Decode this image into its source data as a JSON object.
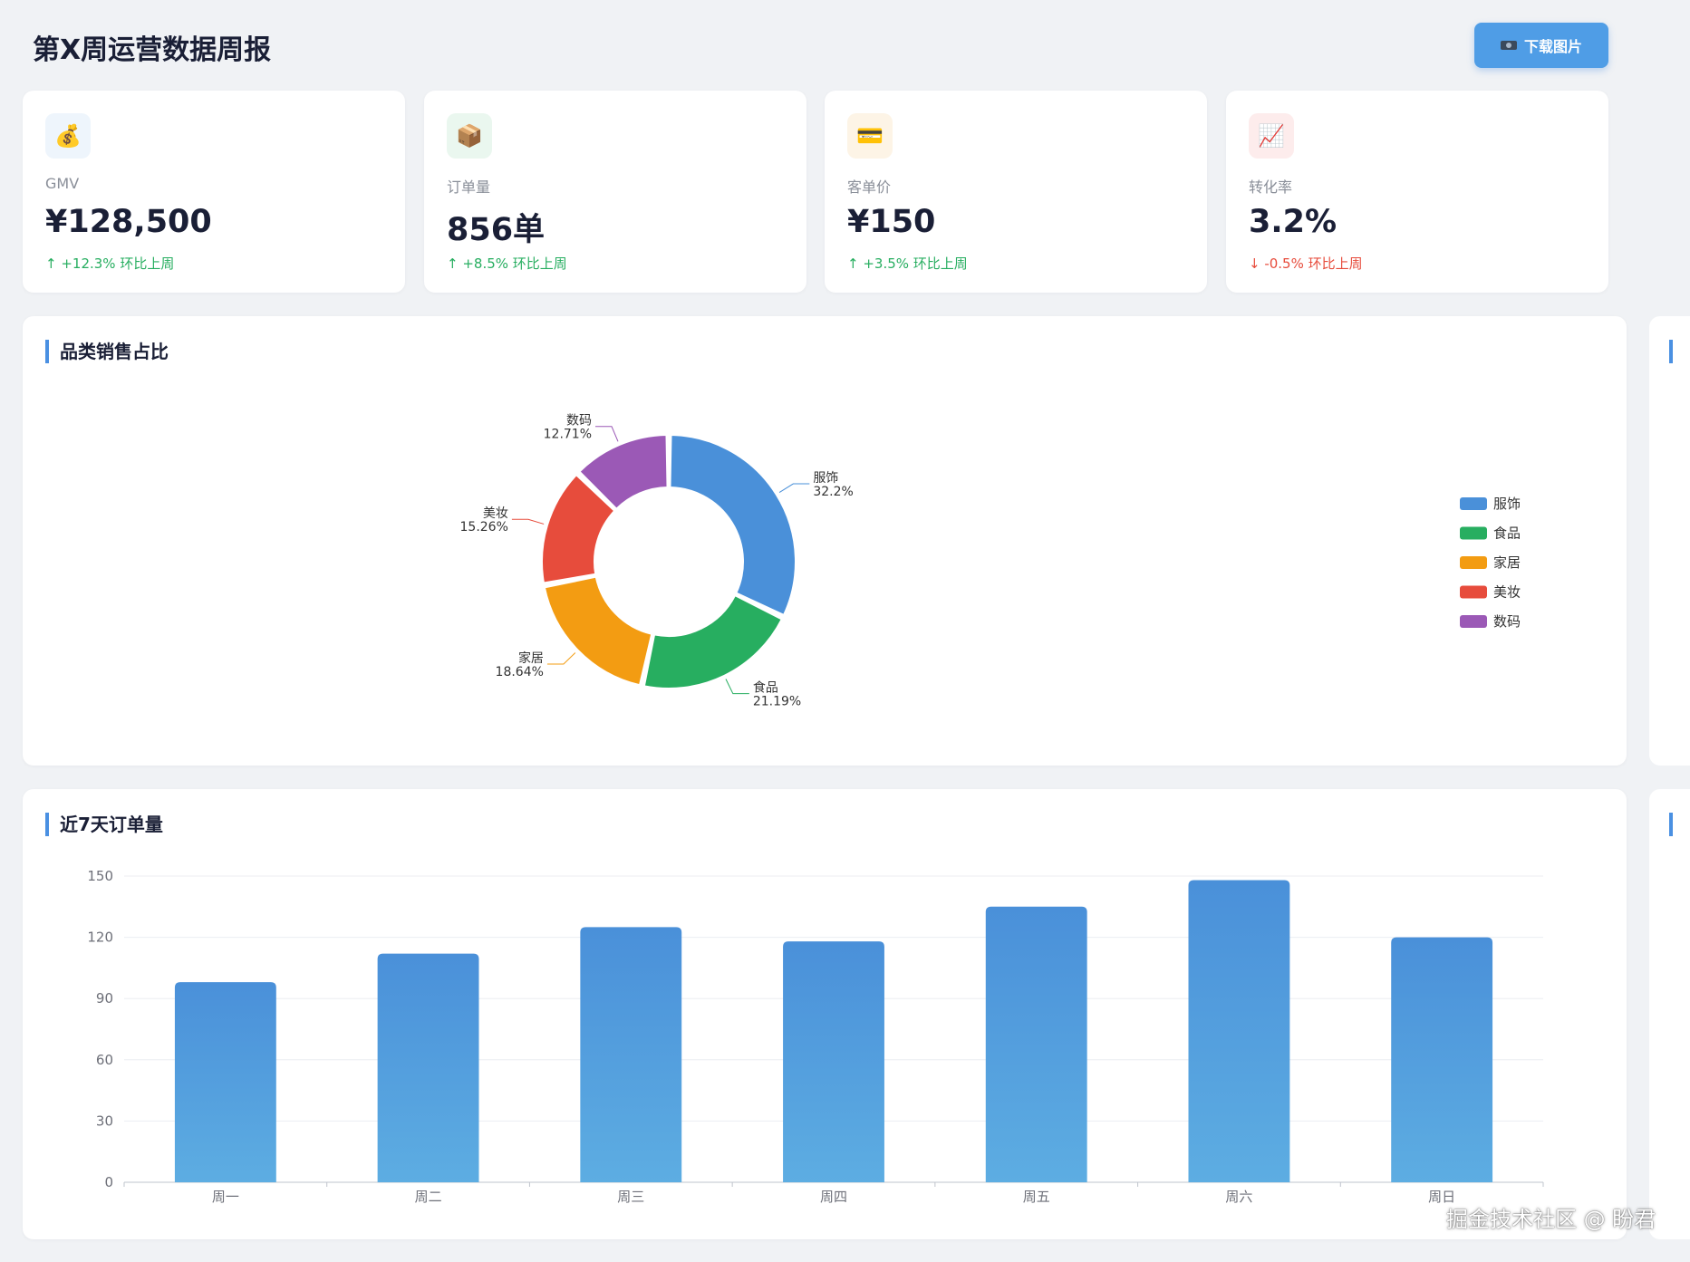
{
  "header": {
    "title": "第X周运营数据周报",
    "download_label": "下载图片"
  },
  "kpis": [
    {
      "icon": "money-bag-icon",
      "glyph": "💰",
      "icon_bg": "#eef5fc",
      "label": "GMV",
      "value": "¥128,500",
      "change": "↑ +12.3% 环比上周",
      "trend": "up"
    },
    {
      "icon": "package-icon",
      "glyph": "📦",
      "icon_bg": "#eaf7ef",
      "label": "订单量",
      "value": "856单",
      "change": "↑ +8.5% 环比上周",
      "trend": "up"
    },
    {
      "icon": "credit-card-icon",
      "glyph": "💳",
      "icon_bg": "#fdf4e6",
      "label": "客单价",
      "value": "¥150",
      "change": "↑ +3.5% 环比上周",
      "trend": "up"
    },
    {
      "icon": "trend-chart-icon",
      "glyph": "📈",
      "icon_bg": "#fdecec",
      "label": "转化率",
      "value": "3.2%",
      "change": "↓ -0.5% 环比上周",
      "trend": "down"
    }
  ],
  "panels": {
    "category_title": "品类销售占比",
    "orders_title": "近7天订单量"
  },
  "chart_data": [
    {
      "type": "pie",
      "variant": "donut",
      "title": "品类销售占比",
      "labels": [
        "服饰",
        "食品",
        "家居",
        "美妆",
        "数码"
      ],
      "values": [
        32.2,
        21.19,
        18.64,
        15.26,
        12.71
      ],
      "value_labels": [
        "32.2%",
        "21.19%",
        "18.64%",
        "15.26%",
        "12.71%"
      ],
      "colors": [
        "#4a90d9",
        "#27ae60",
        "#f39c12",
        "#e74c3c",
        "#9b59b6"
      ],
      "legend": [
        "服饰",
        "食品",
        "家居",
        "美妆",
        "数码"
      ],
      "legend_position": "right"
    },
    {
      "type": "bar",
      "title": "近7天订单量",
      "categories": [
        "周一",
        "周二",
        "周三",
        "周四",
        "周五",
        "周六",
        "周日"
      ],
      "values": [
        98,
        112,
        125,
        118,
        135,
        148,
        120
      ],
      "ylim": [
        0,
        150
      ],
      "yticks": [
        0,
        30,
        60,
        90,
        120,
        150
      ],
      "grid": true,
      "color_top": "#4a90d9",
      "color_bottom": "#5dade2"
    }
  ],
  "watermark": "掘金技术社区 @ 盼君"
}
